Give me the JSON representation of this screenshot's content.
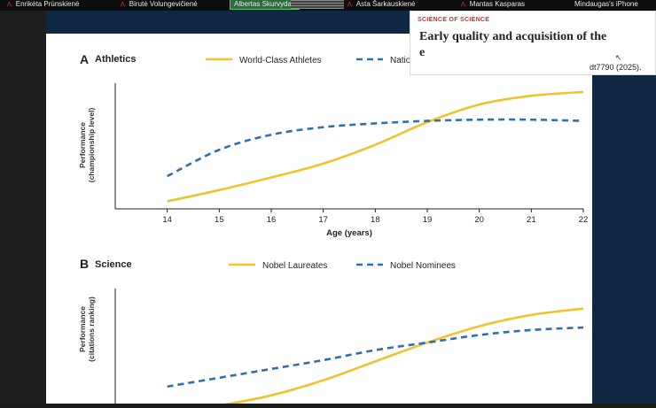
{
  "meeting": {
    "participants": [
      {
        "name": "Enrikėta Prūnskienė",
        "muted": true
      },
      {
        "name": "Birutė Volungevičienė",
        "muted": true
      },
      {
        "name": "Albertas Skurvydas",
        "muted": false,
        "active": true
      },
      {
        "name": "Asta Šarkauskienė",
        "muted": true
      },
      {
        "name": "Mantas Kasparas",
        "muted": true
      },
      {
        "name": "Mindaugas's iPhone",
        "muted": false
      }
    ],
    "mic_icon": "mic-muted-icon"
  },
  "popup": {
    "kicker": "SCIENCE OF SCIENCE",
    "headline": "Early quality and acquisition of the",
    "headline_line2": "e",
    "citation": "dt7790 (2025)."
  },
  "panel_a": {
    "letter": "A",
    "title": "Athletics",
    "legend": [
      "World-Class Athletes",
      "National-Class Athletes"
    ],
    "ylabel_line1": "Performance",
    "ylabel_line2": "(championship level)",
    "xlabel": "Age (years)",
    "xticks": [
      "14",
      "15",
      "16",
      "17",
      "18",
      "19",
      "20",
      "21",
      "22"
    ]
  },
  "panel_b": {
    "letter": "B",
    "title": "Science",
    "legend": [
      "Nobel Laureates",
      "Nobel Nominees"
    ],
    "ylabel_line1": "Performance",
    "ylabel_line2": "(citations ranking)"
  },
  "colors": {
    "gold": "#f2c12e",
    "blue": "#2f6fae",
    "navy": "#0f2742",
    "red": "#c0392b"
  },
  "chart_data": [
    {
      "type": "line",
      "title": "Athletics",
      "xlabel": "Age (years)",
      "ylabel": "Performance (championship level)",
      "xlim": [
        13,
        22
      ],
      "ylim": [
        0,
        1
      ],
      "series": [
        {
          "name": "World-Class Athletes",
          "style": "solid",
          "color": "#f2c12e",
          "x": [
            14,
            15,
            16,
            17,
            18,
            19,
            20,
            21,
            22
          ],
          "y": [
            0.06,
            0.15,
            0.25,
            0.36,
            0.51,
            0.69,
            0.83,
            0.9,
            0.93
          ]
        },
        {
          "name": "National-Class Athletes",
          "style": "dashed",
          "color": "#2f6fae",
          "x": [
            14,
            15,
            16,
            17,
            18,
            19,
            20,
            21,
            22
          ],
          "y": [
            0.26,
            0.47,
            0.59,
            0.65,
            0.68,
            0.7,
            0.71,
            0.71,
            0.7
          ]
        }
      ]
    },
    {
      "type": "line",
      "title": "Science",
      "xlabel": "",
      "ylabel": "Performance (citations ranking)",
      "xlim": [
        13,
        22
      ],
      "ylim": [
        0,
        1
      ],
      "series": [
        {
          "name": "Nobel Laureates",
          "style": "solid",
          "color": "#f2c12e",
          "x": [
            14,
            15,
            16,
            17,
            18,
            19,
            20,
            21,
            22
          ],
          "y": [
            0.02,
            0.07,
            0.15,
            0.27,
            0.42,
            0.57,
            0.7,
            0.79,
            0.84
          ]
        },
        {
          "name": "Nobel Nominees",
          "style": "dashed",
          "color": "#2f6fae",
          "x": [
            14,
            15,
            16,
            17,
            18,
            19,
            20,
            21,
            22
          ],
          "y": [
            0.22,
            0.29,
            0.36,
            0.43,
            0.51,
            0.57,
            0.63,
            0.67,
            0.69
          ]
        }
      ]
    }
  ]
}
